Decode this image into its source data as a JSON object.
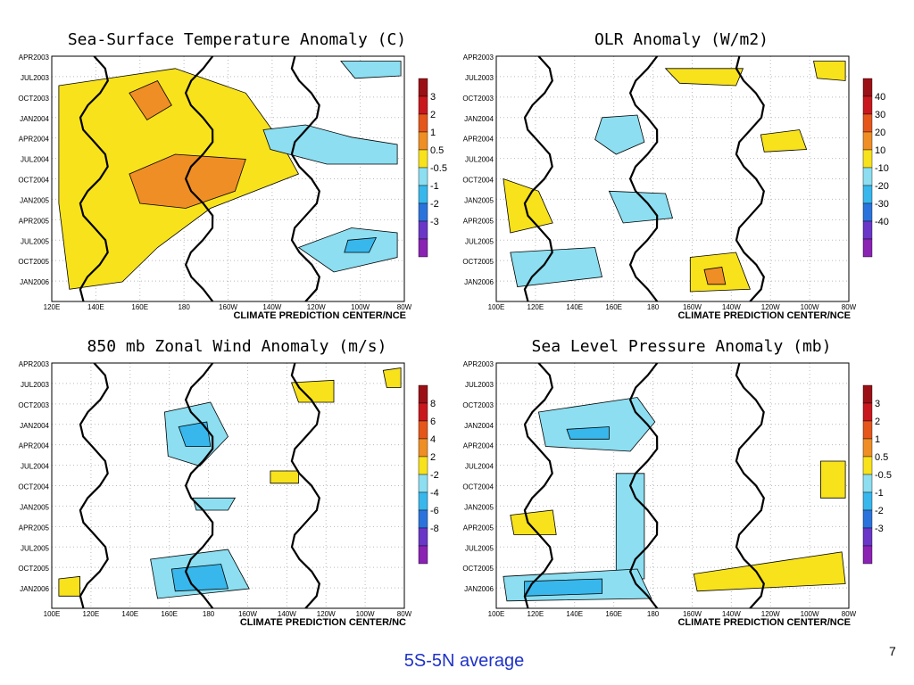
{
  "caption": "5S-5N average",
  "page_number": "7",
  "palette": {
    "warm": [
      "#f7e21c",
      "#ef8e24",
      "#e5561b",
      "#c8181d",
      "#9b1016"
    ],
    "cool": [
      "#8cdef0",
      "#38b7ec",
      "#2b73dc",
      "#6a36c8",
      "#8a22b4"
    ],
    "contour": "#000000"
  },
  "chart_data": [
    {
      "type": "heatmap",
      "title": "Sea-Surface Temperature Anomaly (C)",
      "credit": "CLIMATE PREDICTION CENTER/NCE",
      "x_ticks": [
        "120E",
        "140E",
        "160E",
        "180",
        "160W",
        "140W",
        "120W",
        "100W",
        "80W"
      ],
      "y_ticks": [
        "APR2003",
        "JUL2003",
        "OCT2003",
        "JAN2004",
        "APR2004",
        "JUL2004",
        "OCT2004",
        "JAN2005",
        "APR2005",
        "JUL2005",
        "OCT2005",
        "JAN2006"
      ],
      "legend_pos": [
        "3",
        "2",
        "1",
        "0.5"
      ],
      "legend_neg": [
        "-0.5",
        "-1",
        "-2",
        "-3"
      ],
      "regions": [
        {
          "level": 1,
          "pts": [
            [
              0.02,
              0.12
            ],
            [
              0.35,
              0.05
            ],
            [
              0.55,
              0.15
            ],
            [
              0.65,
              0.35
            ],
            [
              0.7,
              0.48
            ],
            [
              0.45,
              0.62
            ],
            [
              0.3,
              0.78
            ],
            [
              0.2,
              0.92
            ],
            [
              0.05,
              0.95
            ],
            [
              0.02,
              0.6
            ]
          ]
        },
        {
          "level": 2,
          "pts": [
            [
              0.22,
              0.48
            ],
            [
              0.35,
              0.4
            ],
            [
              0.55,
              0.42
            ],
            [
              0.52,
              0.55
            ],
            [
              0.38,
              0.62
            ],
            [
              0.25,
              0.6
            ]
          ]
        },
        {
          "level": 2,
          "pts": [
            [
              0.22,
              0.15
            ],
            [
              0.3,
              0.1
            ],
            [
              0.34,
              0.2
            ],
            [
              0.27,
              0.26
            ]
          ]
        },
        {
          "level": -1,
          "pts": [
            [
              0.6,
              0.3
            ],
            [
              0.72,
              0.28
            ],
            [
              0.85,
              0.33
            ],
            [
              0.98,
              0.36
            ],
            [
              0.98,
              0.44
            ],
            [
              0.78,
              0.44
            ],
            [
              0.62,
              0.38
            ]
          ]
        },
        {
          "level": -1,
          "pts": [
            [
              0.7,
              0.78
            ],
            [
              0.85,
              0.7
            ],
            [
              0.98,
              0.72
            ],
            [
              0.98,
              0.82
            ],
            [
              0.8,
              0.88
            ]
          ]
        },
        {
          "level": -1,
          "pts": [
            [
              0.82,
              0.02
            ],
            [
              0.99,
              0.02
            ],
            [
              0.99,
              0.08
            ],
            [
              0.86,
              0.09
            ]
          ]
        },
        {
          "level": -2,
          "pts": [
            [
              0.84,
              0.75
            ],
            [
              0.92,
              0.74
            ],
            [
              0.9,
              0.8
            ],
            [
              0.83,
              0.8
            ]
          ]
        }
      ]
    },
    {
      "type": "heatmap",
      "title": "OLR Anomaly (W/m2)",
      "credit": "CLIMATE PREDICTION CENTER/NCE",
      "x_ticks": [
        "100E",
        "120E",
        "140E",
        "160E",
        "180",
        "160W",
        "140W",
        "120W",
        "100W",
        "80W"
      ],
      "y_ticks": [
        "APR2003",
        "JUL2003",
        "OCT2003",
        "JAN2004",
        "APR2004",
        "JUL2004",
        "OCT2004",
        "JAN2005",
        "APR2005",
        "JUL2005",
        "OCT2005",
        "JAN2006"
      ],
      "legend_pos": [
        "40",
        "30",
        "20",
        "10"
      ],
      "legend_neg": [
        "-10",
        "-20",
        "-30",
        "-40"
      ],
      "regions": [
        {
          "level": 1,
          "pts": [
            [
              0.02,
              0.5
            ],
            [
              0.12,
              0.55
            ],
            [
              0.16,
              0.68
            ],
            [
              0.04,
              0.72
            ]
          ]
        },
        {
          "level": 1,
          "pts": [
            [
              0.55,
              0.82
            ],
            [
              0.68,
              0.8
            ],
            [
              0.72,
              0.95
            ],
            [
              0.55,
              0.96
            ]
          ]
        },
        {
          "level": 2,
          "pts": [
            [
              0.59,
              0.87
            ],
            [
              0.64,
              0.86
            ],
            [
              0.65,
              0.93
            ],
            [
              0.6,
              0.93
            ]
          ]
        },
        {
          "level": 1,
          "pts": [
            [
              0.48,
              0.05
            ],
            [
              0.7,
              0.05
            ],
            [
              0.68,
              0.12
            ],
            [
              0.52,
              0.11
            ]
          ]
        },
        {
          "level": 1,
          "pts": [
            [
              0.75,
              0.32
            ],
            [
              0.86,
              0.3
            ],
            [
              0.88,
              0.38
            ],
            [
              0.76,
              0.39
            ]
          ]
        },
        {
          "level": 1,
          "pts": [
            [
              0.9,
              0.02
            ],
            [
              0.99,
              0.02
            ],
            [
              0.99,
              0.1
            ],
            [
              0.91,
              0.09
            ]
          ]
        },
        {
          "level": -1,
          "pts": [
            [
              0.3,
              0.25
            ],
            [
              0.4,
              0.24
            ],
            [
              0.42,
              0.35
            ],
            [
              0.34,
              0.4
            ],
            [
              0.28,
              0.34
            ]
          ]
        },
        {
          "level": -1,
          "pts": [
            [
              0.32,
              0.55
            ],
            [
              0.48,
              0.56
            ],
            [
              0.5,
              0.66
            ],
            [
              0.36,
              0.68
            ]
          ]
        },
        {
          "level": -1,
          "pts": [
            [
              0.04,
              0.8
            ],
            [
              0.28,
              0.78
            ],
            [
              0.3,
              0.9
            ],
            [
              0.06,
              0.94
            ]
          ]
        }
      ]
    },
    {
      "type": "heatmap",
      "title": "850 mb Zonal Wind Anomaly (m/s)",
      "credit": "CLIMATE PREDICTION CENTER/NC",
      "x_ticks": [
        "100E",
        "120E",
        "140E",
        "160E",
        "180",
        "160W",
        "140W",
        "120W",
        "100W",
        "80W"
      ],
      "y_ticks": [
        "APR2003",
        "JUL2003",
        "OCT2003",
        "JAN2004",
        "APR2004",
        "JUL2004",
        "OCT2004",
        "JAN2005",
        "APR2005",
        "JUL2005",
        "OCT2005",
        "JAN2006"
      ],
      "legend_pos": [
        "8",
        "6",
        "4",
        "2"
      ],
      "legend_neg": [
        "-2",
        "-4",
        "-6",
        "-8"
      ],
      "regions": [
        {
          "level": -1,
          "pts": [
            [
              0.32,
              0.2
            ],
            [
              0.45,
              0.16
            ],
            [
              0.5,
              0.3
            ],
            [
              0.42,
              0.42
            ],
            [
              0.33,
              0.38
            ]
          ]
        },
        {
          "level": -2,
          "pts": [
            [
              0.36,
              0.26
            ],
            [
              0.44,
              0.24
            ],
            [
              0.45,
              0.34
            ],
            [
              0.38,
              0.34
            ]
          ]
        },
        {
          "level": -1,
          "pts": [
            [
              0.28,
              0.8
            ],
            [
              0.5,
              0.76
            ],
            [
              0.56,
              0.92
            ],
            [
              0.3,
              0.96
            ]
          ]
        },
        {
          "level": -2,
          "pts": [
            [
              0.34,
              0.84
            ],
            [
              0.48,
              0.82
            ],
            [
              0.5,
              0.92
            ],
            [
              0.35,
              0.93
            ]
          ]
        },
        {
          "level": -1,
          "pts": [
            [
              0.4,
              0.55
            ],
            [
              0.52,
              0.55
            ],
            [
              0.5,
              0.6
            ],
            [
              0.41,
              0.6
            ]
          ]
        },
        {
          "level": 1,
          "pts": [
            [
              0.68,
              0.08
            ],
            [
              0.8,
              0.07
            ],
            [
              0.8,
              0.16
            ],
            [
              0.7,
              0.16
            ]
          ]
        },
        {
          "level": 1,
          "pts": [
            [
              0.62,
              0.44
            ],
            [
              0.7,
              0.44
            ],
            [
              0.7,
              0.49
            ],
            [
              0.62,
              0.49
            ]
          ]
        },
        {
          "level": 1,
          "pts": [
            [
              0.02,
              0.88
            ],
            [
              0.08,
              0.87
            ],
            [
              0.08,
              0.95
            ],
            [
              0.02,
              0.95
            ]
          ]
        },
        {
          "level": 1,
          "pts": [
            [
              0.94,
              0.03
            ],
            [
              0.99,
              0.02
            ],
            [
              0.99,
              0.1
            ],
            [
              0.95,
              0.1
            ]
          ]
        }
      ]
    },
    {
      "type": "heatmap",
      "title": "Sea Level Pressure Anomaly (mb)",
      "credit": "CLIMATE PREDICTION CENTER/NCE",
      "x_ticks": [
        "100E",
        "120E",
        "140E",
        "160E",
        "180",
        "160W",
        "140W",
        "120W",
        "100W",
        "80W"
      ],
      "y_ticks": [
        "APR2003",
        "JUL2003",
        "OCT2003",
        "JAN2004",
        "APR2004",
        "JUL2004",
        "OCT2004",
        "JAN2005",
        "APR2005",
        "JUL2005",
        "OCT2005",
        "JAN2006"
      ],
      "legend_pos": [
        "3",
        "2",
        "1",
        "0.5"
      ],
      "legend_neg": [
        "-0.5",
        "-1",
        "-2",
        "-3"
      ],
      "regions": [
        {
          "level": -1,
          "pts": [
            [
              0.12,
              0.2
            ],
            [
              0.4,
              0.14
            ],
            [
              0.45,
              0.24
            ],
            [
              0.38,
              0.36
            ],
            [
              0.14,
              0.34
            ]
          ]
        },
        {
          "level": -2,
          "pts": [
            [
              0.2,
              0.27
            ],
            [
              0.32,
              0.26
            ],
            [
              0.32,
              0.31
            ],
            [
              0.21,
              0.31
            ]
          ]
        },
        {
          "level": -1,
          "pts": [
            [
              0.34,
              0.45
            ],
            [
              0.42,
              0.45
            ],
            [
              0.42,
              0.88
            ],
            [
              0.34,
              0.88
            ]
          ]
        },
        {
          "level": -1,
          "pts": [
            [
              0.02,
              0.87
            ],
            [
              0.4,
              0.84
            ],
            [
              0.44,
              0.96
            ],
            [
              0.03,
              0.97
            ]
          ]
        },
        {
          "level": -2,
          "pts": [
            [
              0.08,
              0.89
            ],
            [
              0.3,
              0.88
            ],
            [
              0.3,
              0.94
            ],
            [
              0.08,
              0.95
            ]
          ]
        },
        {
          "level": 1,
          "pts": [
            [
              0.04,
              0.62
            ],
            [
              0.16,
              0.6
            ],
            [
              0.17,
              0.7
            ],
            [
              0.05,
              0.7
            ]
          ]
        },
        {
          "level": 1,
          "pts": [
            [
              0.56,
              0.86
            ],
            [
              0.98,
              0.77
            ],
            [
              0.99,
              0.9
            ],
            [
              0.57,
              0.93
            ]
          ]
        },
        {
          "level": 1,
          "pts": [
            [
              0.92,
              0.4
            ],
            [
              0.99,
              0.4
            ],
            [
              0.99,
              0.55
            ],
            [
              0.92,
              0.55
            ]
          ]
        }
      ]
    }
  ]
}
